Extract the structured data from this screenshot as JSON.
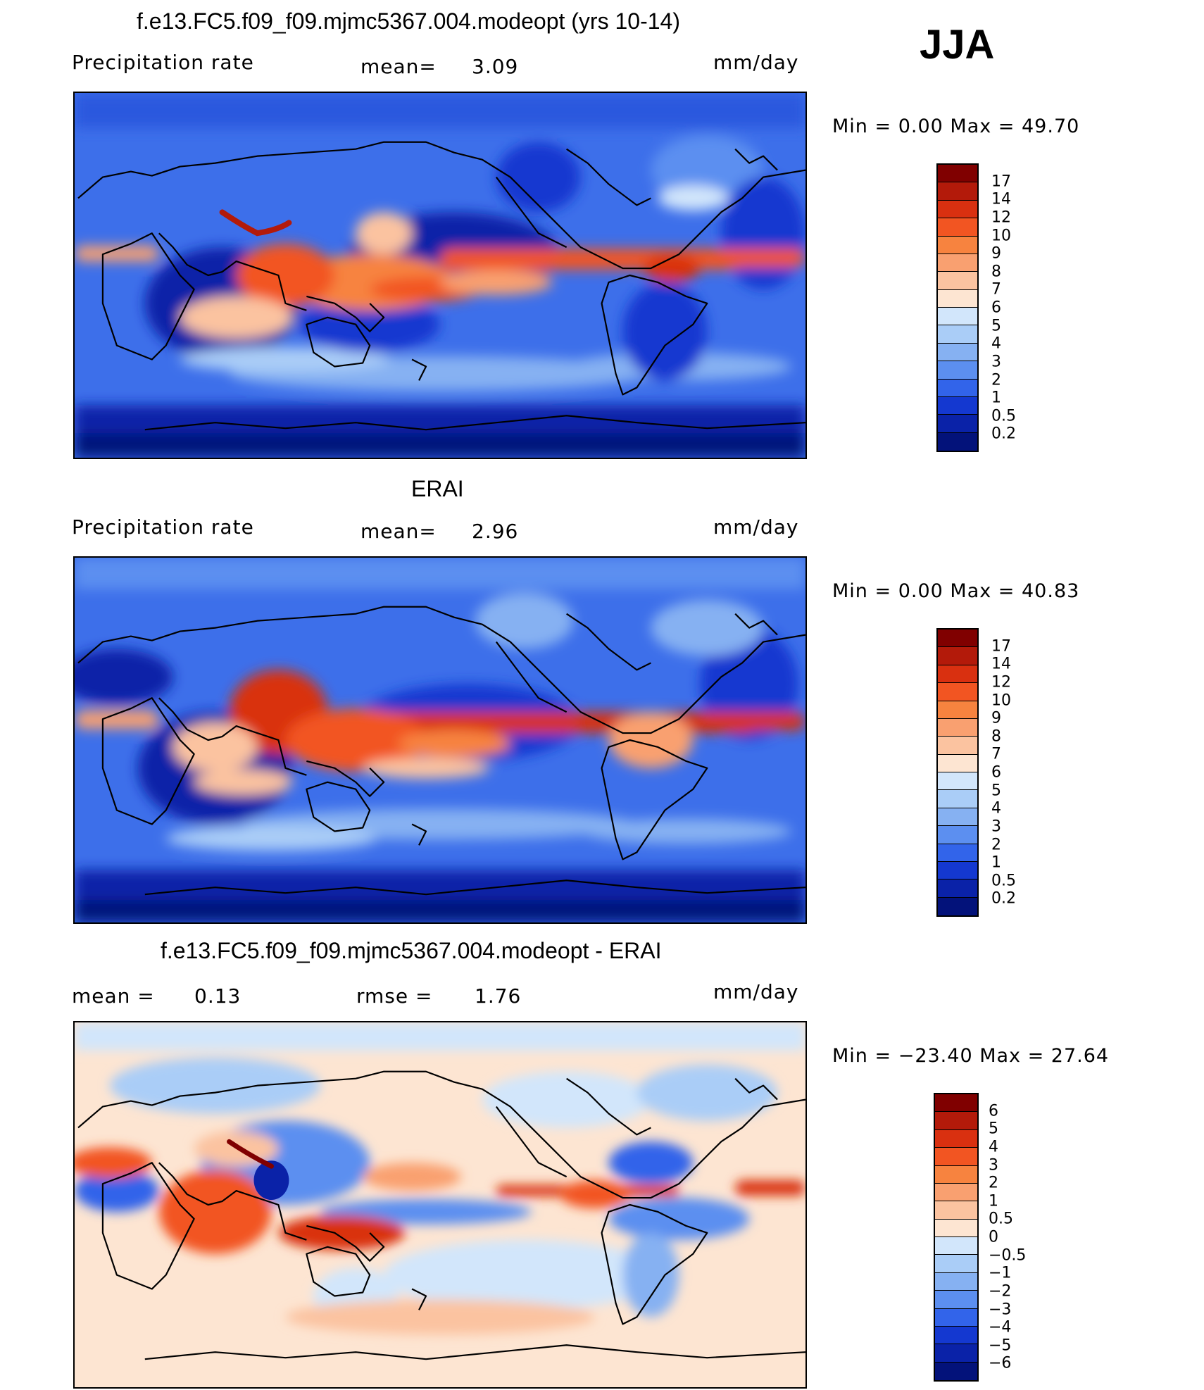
{
  "season": "JJA",
  "panels": [
    {
      "id": "model",
      "title": "f.e13.FC5.f09_f09.mjmc5367.004.modeopt (yrs 10-14)",
      "left_label": "Precipitation  rate",
      "mid_label": "mean=",
      "mid_value": "3.09",
      "units": "mm/day",
      "minmax": "Min  =     0.00  Max  =    49.70",
      "colorbar": {
        "labels": [
          "17",
          "14",
          "12",
          "10",
          "9",
          "8",
          "7",
          "6",
          "5",
          "4",
          "3",
          "2",
          "1",
          "0.5",
          "0.2"
        ],
        "colors": [
          "#800000",
          "#b31a0a",
          "#d93010",
          "#f25522",
          "#f7833f",
          "#f9a070",
          "#fbc3a0",
          "#fde5d2",
          "#d2e6fb",
          "#aacdf7",
          "#86b1f2",
          "#5c8ff0",
          "#3264ea",
          "#1438d0",
          "#0a22a8",
          "#03127a"
        ]
      }
    },
    {
      "id": "obs",
      "title": "ERAI",
      "left_label": "Precipitation  rate",
      "mid_label": "mean=",
      "mid_value": "2.96",
      "units": "mm/day",
      "minmax": "Min  =     0.00  Max  =    40.83",
      "colorbar": {
        "labels": [
          "17",
          "14",
          "12",
          "10",
          "9",
          "8",
          "7",
          "6",
          "5",
          "4",
          "3",
          "2",
          "1",
          "0.5",
          "0.2"
        ],
        "colors": [
          "#800000",
          "#b31a0a",
          "#d93010",
          "#f25522",
          "#f7833f",
          "#f9a070",
          "#fbc3a0",
          "#fde5d2",
          "#d2e6fb",
          "#aacdf7",
          "#86b1f2",
          "#5c8ff0",
          "#3264ea",
          "#1438d0",
          "#0a22a8",
          "#03127a"
        ]
      }
    },
    {
      "id": "diff",
      "title": "f.e13.FC5.f09_f09.mjmc5367.004.modeopt - ERAI",
      "left_label": "mean  =",
      "left_value": "0.13",
      "mid_label": "rmse  =",
      "mid_value": "1.76",
      "units": "mm/day",
      "minmax": "Min  = −23.40  Max  =    27.64",
      "colorbar": {
        "labels": [
          "6",
          "5",
          "4",
          "3",
          "2",
          "1",
          "0.5",
          "0",
          "−0.5",
          "−1",
          "−2",
          "−3",
          "−4",
          "−5",
          "−6"
        ],
        "colors": [
          "#800000",
          "#b31a0a",
          "#d93010",
          "#f25522",
          "#f7833f",
          "#f9a070",
          "#fbc3a0",
          "#fde5d2",
          "#d2e6fb",
          "#aacdf7",
          "#86b1f2",
          "#5c8ff0",
          "#3264ea",
          "#1438d0",
          "#0a22a8",
          "#03127a"
        ]
      }
    }
  ]
}
